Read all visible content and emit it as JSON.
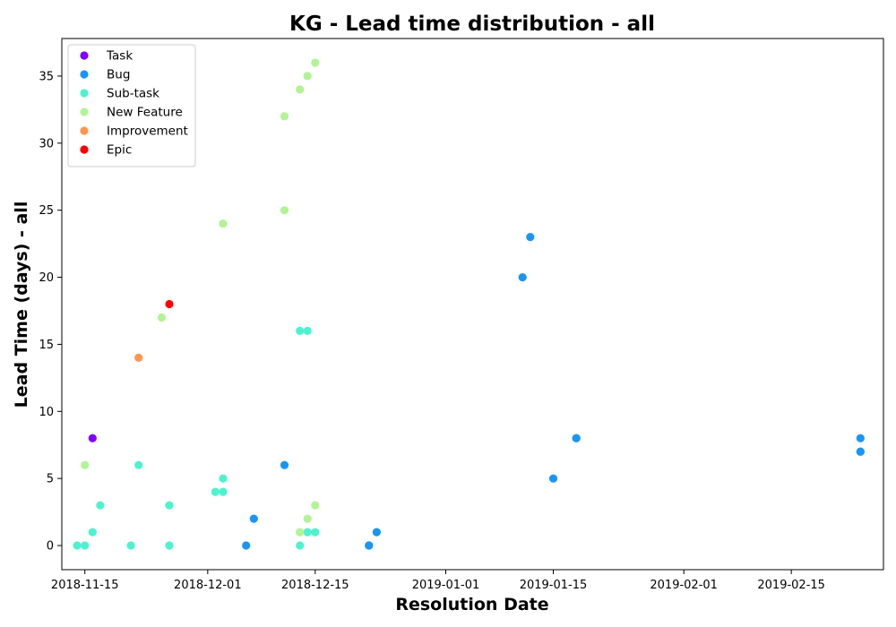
{
  "chart_data": {
    "type": "scatter",
    "title": "KG - Lead time distribution - all",
    "xlabel": "Resolution Date",
    "ylabel": "Lead Time (days) - all",
    "x_is_date": true,
    "xlim": [
      "2018-11-12",
      "2019-02-27"
    ],
    "ylim": [
      -1.8,
      37.8
    ],
    "x_ticks": [
      "2018-11-15",
      "2018-12-01",
      "2018-12-15",
      "2019-01-01",
      "2019-01-15",
      "2019-02-01",
      "2019-02-15"
    ],
    "y_ticks": [
      0,
      5,
      10,
      15,
      20,
      25,
      30,
      35
    ],
    "grid": false,
    "legend_position": "top-left",
    "series": [
      {
        "name": "Task",
        "color": "#8000ff",
        "points": [
          {
            "x": "2018-11-16",
            "y": 8
          }
        ]
      },
      {
        "name": "Bug",
        "color": "#1996f3",
        "points": [
          {
            "x": "2018-12-06",
            "y": 0
          },
          {
            "x": "2018-12-07",
            "y": 2
          },
          {
            "x": "2018-12-11",
            "y": 6
          },
          {
            "x": "2018-12-22",
            "y": 0
          },
          {
            "x": "2018-12-22",
            "y": 0
          },
          {
            "x": "2018-12-23",
            "y": 1
          },
          {
            "x": "2019-01-11",
            "y": 20
          },
          {
            "x": "2019-01-12",
            "y": 23
          },
          {
            "x": "2019-01-15",
            "y": 5
          },
          {
            "x": "2019-01-18",
            "y": 8
          },
          {
            "x": "2019-01-18",
            "y": 8
          },
          {
            "x": "2019-02-24",
            "y": 8
          },
          {
            "x": "2019-02-24",
            "y": 7
          },
          {
            "x": "2019-02-24",
            "y": 7
          }
        ]
      },
      {
        "name": "Sub-task",
        "color": "#4df3ce",
        "points": [
          {
            "x": "2018-11-14",
            "y": 0
          },
          {
            "x": "2018-11-15",
            "y": 0
          },
          {
            "x": "2018-11-16",
            "y": 1
          },
          {
            "x": "2018-11-17",
            "y": 3
          },
          {
            "x": "2018-11-21",
            "y": 0
          },
          {
            "x": "2018-11-22",
            "y": 6
          },
          {
            "x": "2018-11-26",
            "y": 3
          },
          {
            "x": "2018-11-26",
            "y": 0
          },
          {
            "x": "2018-12-02",
            "y": 4
          },
          {
            "x": "2018-12-03",
            "y": 4
          },
          {
            "x": "2018-12-03",
            "y": 5
          },
          {
            "x": "2018-12-13",
            "y": 16
          },
          {
            "x": "2018-12-14",
            "y": 16
          },
          {
            "x": "2018-12-13",
            "y": 0
          },
          {
            "x": "2018-12-14",
            "y": 1
          },
          {
            "x": "2018-12-15",
            "y": 1
          }
        ]
      },
      {
        "name": "New Feature",
        "color": "#b2f396",
        "points": [
          {
            "x": "2018-11-15",
            "y": 6
          },
          {
            "x": "2018-11-25",
            "y": 17
          },
          {
            "x": "2018-12-03",
            "y": 24
          },
          {
            "x": "2018-12-11",
            "y": 32
          },
          {
            "x": "2018-12-11",
            "y": 25
          },
          {
            "x": "2018-12-13",
            "y": 34
          },
          {
            "x": "2018-12-14",
            "y": 35
          },
          {
            "x": "2018-12-15",
            "y": 36
          },
          {
            "x": "2018-12-13",
            "y": 1
          },
          {
            "x": "2018-12-14",
            "y": 2
          },
          {
            "x": "2018-12-15",
            "y": 3
          }
        ]
      },
      {
        "name": "Improvement",
        "color": "#ff964f",
        "points": [
          {
            "x": "2018-11-22",
            "y": 14
          }
        ]
      },
      {
        "name": "Epic",
        "color": "#ff0000",
        "points": [
          {
            "x": "2018-11-26",
            "y": 18
          }
        ]
      }
    ]
  }
}
